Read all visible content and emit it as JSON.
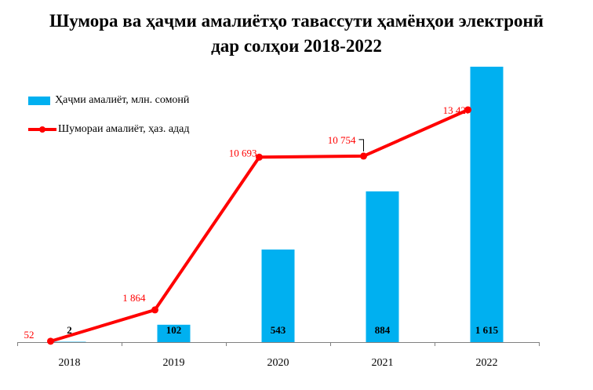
{
  "chart_data": {
    "type": "bar",
    "title": "Шумора ва ҳаҷми амалиётҳо тавассути ҳамёнҳои электронӣ",
    "title_line2": "дар солҳои 2018-2022",
    "categories": [
      "2018",
      "2019",
      "2020",
      "2021",
      "2022"
    ],
    "series": [
      {
        "name": "Ҳаҷми амалиёт, млн. сомонӣ",
        "type": "bar",
        "color": "#00B0F0",
        "values": [
          2,
          102,
          543,
          884,
          1615
        ],
        "labels": [
          "2",
          "102",
          "543",
          "884",
          "1 615"
        ]
      },
      {
        "name": "Шумораи амалиёт, ҳаз. адад",
        "type": "line",
        "color": "#FF0000",
        "values": [
          52,
          1864,
          10693,
          10754,
          13427
        ],
        "labels": [
          "52",
          "1 864",
          "10 693",
          "10 754",
          "13 427"
        ]
      }
    ],
    "bar_axis_max": 1615,
    "line_axis_max": 13427,
    "legend_position": "left",
    "grid": false
  }
}
